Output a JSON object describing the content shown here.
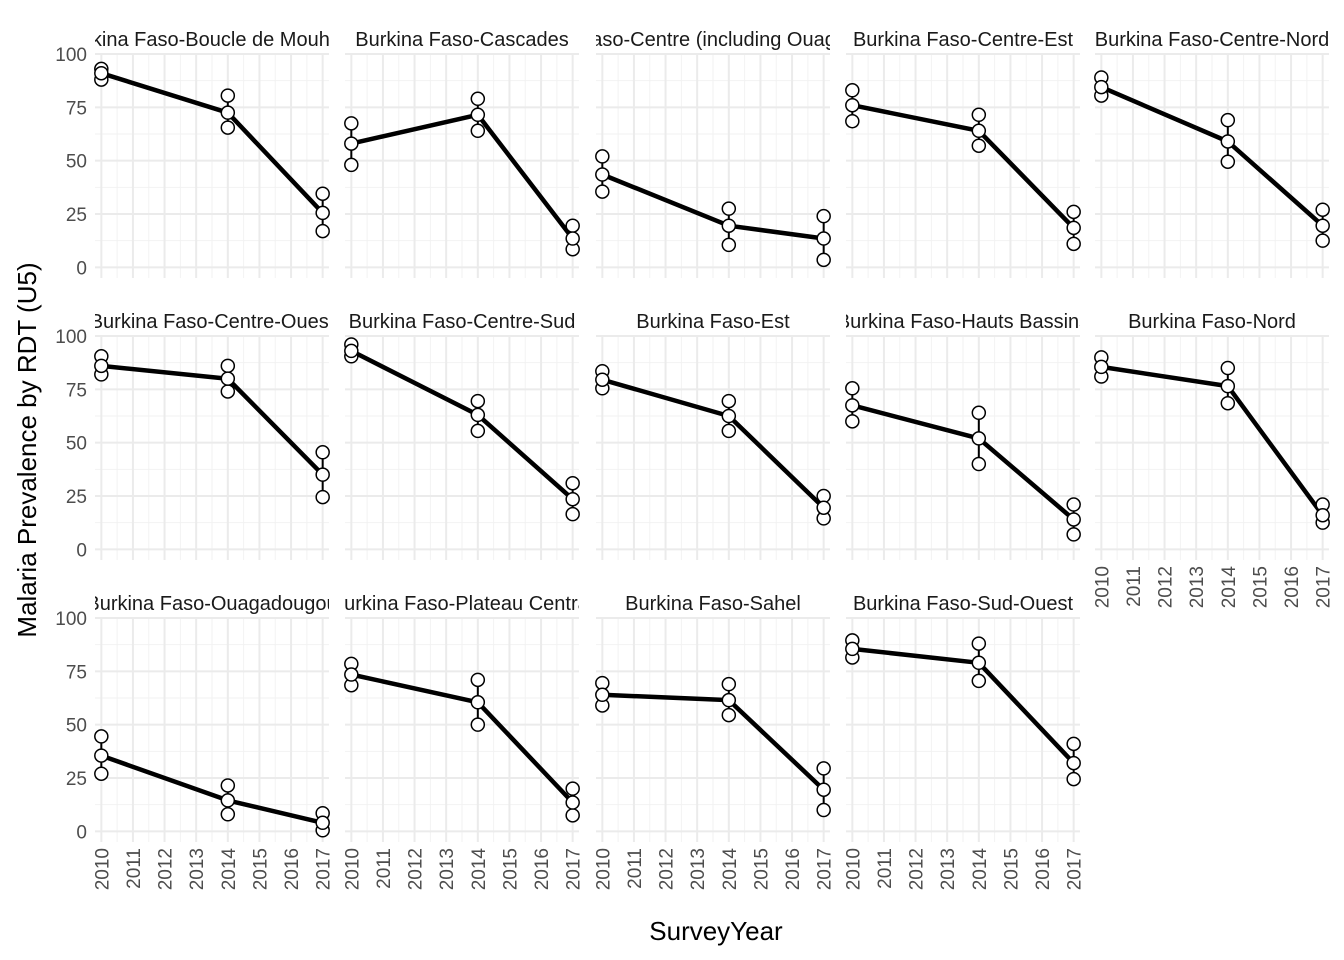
{
  "chart_data": {
    "type": "line",
    "layout": "facet-grid",
    "xlabel": "SurveyYear",
    "ylabel": "Malaria Prevalence by RDT (U5)",
    "xticks": [
      "2010",
      "2011",
      "2012",
      "2013",
      "2014",
      "2015",
      "2016",
      "2017"
    ],
    "xlim": [
      2009.8,
      2017.2
    ],
    "yticks": [
      "0",
      "25",
      "50",
      "75",
      "100"
    ],
    "ylim": [
      -5,
      100
    ],
    "grid": true,
    "legend": "none",
    "colors": {
      "line": "#000000",
      "point_fill": "#ffffff",
      "grid": "#ebebeb"
    },
    "panels": [
      {
        "title": "Burkina Faso-Boucle de Mouhoun",
        "x": [
          2010,
          2014,
          2017
        ],
        "y": [
          91,
          72.5,
          25.5
        ],
        "lower": [
          88,
          65.5,
          17
        ],
        "upper": [
          93,
          80.5,
          34.5
        ]
      },
      {
        "title": "Burkina Faso-Cascades",
        "x": [
          2010,
          2014,
          2017
        ],
        "y": [
          58,
          71.5,
          13.5
        ],
        "lower": [
          48,
          64,
          8.5
        ],
        "upper": [
          67.5,
          79,
          19.5
        ]
      },
      {
        "title": "Burkina Faso-Centre (including Ouagadougou)",
        "x": [
          2010,
          2014,
          2017
        ],
        "y": [
          43.5,
          19.5,
          13.5
        ],
        "lower": [
          35.5,
          10.5,
          3.5
        ],
        "upper": [
          52,
          27.5,
          24
        ]
      },
      {
        "title": "Burkina Faso-Centre-Est",
        "x": [
          2010,
          2014,
          2017
        ],
        "y": [
          76,
          64,
          18.5
        ],
        "lower": [
          68.5,
          57,
          11
        ],
        "upper": [
          83,
          71.5,
          26
        ]
      },
      {
        "title": "Burkina Faso-Centre-Nord",
        "x": [
          2010,
          2014,
          2017
        ],
        "y": [
          84.5,
          59,
          19.5
        ],
        "lower": [
          80.5,
          49.5,
          12.5
        ],
        "upper": [
          89,
          69,
          27
        ]
      },
      {
        "title": "Burkina Faso-Centre-Ouest",
        "x": [
          2010,
          2014,
          2017
        ],
        "y": [
          86,
          80,
          35
        ],
        "lower": [
          82,
          74,
          24.5
        ],
        "upper": [
          90.5,
          86,
          45.5
        ]
      },
      {
        "title": "Burkina Faso-Centre-Sud",
        "x": [
          2010,
          2014,
          2017
        ],
        "y": [
          93,
          63,
          23.5
        ],
        "lower": [
          90.5,
          55.5,
          16.5
        ],
        "upper": [
          96,
          69.5,
          31
        ]
      },
      {
        "title": "Burkina Faso-Est",
        "x": [
          2010,
          2014,
          2017
        ],
        "y": [
          79.5,
          62.5,
          19.5
        ],
        "lower": [
          75.5,
          55.5,
          14.5
        ],
        "upper": [
          83.5,
          69.5,
          25
        ]
      },
      {
        "title": "Burkina Faso-Hauts Bassins",
        "x": [
          2010,
          2014,
          2017
        ],
        "y": [
          67.5,
          52,
          14
        ],
        "lower": [
          60,
          40,
          7
        ],
        "upper": [
          75.5,
          64,
          21
        ]
      },
      {
        "title": "Burkina Faso-Nord",
        "x": [
          2010,
          2014,
          2017
        ],
        "y": [
          85.5,
          76.5,
          16
        ],
        "lower": [
          81,
          68.5,
          12.5
        ],
        "upper": [
          90,
          85,
          21
        ]
      },
      {
        "title": "Burkina Faso-Ouagadougou",
        "x": [
          2010,
          2014,
          2017
        ],
        "y": [
          35.5,
          14.5,
          4
        ],
        "lower": [
          27,
          8,
          0.5
        ],
        "upper": [
          44.5,
          21.5,
          8.5
        ]
      },
      {
        "title": "Burkina Faso-Plateau Central",
        "x": [
          2010,
          2014,
          2017
        ],
        "y": [
          73.5,
          60.5,
          13.5
        ],
        "lower": [
          68.5,
          50,
          7.5
        ],
        "upper": [
          78.5,
          71,
          20
        ]
      },
      {
        "title": "Burkina Faso-Sahel",
        "x": [
          2010,
          2014,
          2017
        ],
        "y": [
          64,
          61.5,
          19.5
        ],
        "lower": [
          59,
          54.5,
          10
        ],
        "upper": [
          69.5,
          69,
          29.5
        ]
      },
      {
        "title": "Burkina Faso-Sud-Ouest",
        "x": [
          2010,
          2014,
          2017
        ],
        "y": [
          85.5,
          79,
          32
        ],
        "lower": [
          81.5,
          70.5,
          24.5
        ],
        "upper": [
          89.5,
          88,
          41
        ]
      }
    ]
  }
}
